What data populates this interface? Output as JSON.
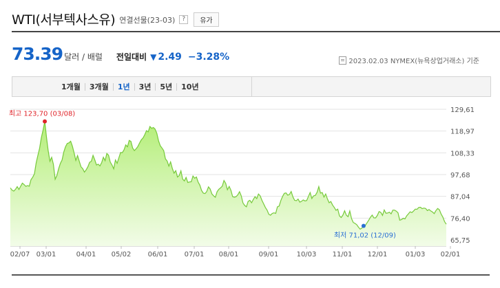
{
  "header": {
    "title": "WTI(서부텍사스유)",
    "subtitle": "연결선물(23-03)",
    "help_label": "?",
    "oil_button_label": "유가"
  },
  "price": {
    "value": "73.39",
    "unit": "달러 / 배럴",
    "compare_label": "전일대비",
    "arrow": "▼",
    "change": "2.49",
    "change_pct": "−3.28%",
    "asof": "2023.02.03  NYMEX(뉴욕상업거래소) 기준"
  },
  "periods": {
    "items": [
      "1개월",
      "3개월",
      "1년",
      "3년",
      "5년",
      "10년"
    ],
    "active": "1년"
  },
  "colors": {
    "accent": "#1664c8",
    "line": "#76c93a",
    "fill_top": "#b4ee78",
    "fill_bottom": "#f2fce8",
    "high": "#e0242a",
    "low": "#2a6fd4"
  },
  "chart_data": {
    "type": "area",
    "ylim": [
      65.75,
      129.61
    ],
    "y_ticks": [
      "129,61",
      "118,97",
      "108,33",
      "97,68",
      "87,04",
      "76,40",
      "65,75"
    ],
    "x_ticks": [
      "02/07",
      "03/01",
      "04/01",
      "05/02",
      "06/01",
      "07/01",
      "08/01",
      "09/01",
      "10/03",
      "11/01",
      "12/01",
      "01/03",
      "02/01"
    ],
    "high_label": "최고 123,70 (03/08)",
    "low_label": "최저 71,02 (12/09)",
    "high_index": 20,
    "low_index": 205,
    "values": [
      91.2,
      90.1,
      89.6,
      90.5,
      91.8,
      90.4,
      92.0,
      93.5,
      92.8,
      91.9,
      92.3,
      92.0,
      95.2,
      96.4,
      98.1,
      103.4,
      107.1,
      110.6,
      115.7,
      119.4,
      123.7,
      116.0,
      109.3,
      104.2,
      106.1,
      102.8,
      95.4,
      97.2,
      100.5,
      103.1,
      104.8,
      108.7,
      111.3,
      112.9,
      113.2,
      114.0,
      111.6,
      108.3,
      104.6,
      107.0,
      104.2,
      101.5,
      100.6,
      98.9,
      100.0,
      101.5,
      103.7,
      104.2,
      107.1,
      104.9,
      102.4,
      102.8,
      101.9,
      103.5,
      106.2,
      104.5,
      108.0,
      107.2,
      103.8,
      102.4,
      100.5,
      104.8,
      103.2,
      105.9,
      108.5,
      108.4,
      109.8,
      112.2,
      111.3,
      114.4,
      113.9,
      110.7,
      109.4,
      110.3,
      111.4,
      113.1,
      114.7,
      115.6,
      117.2,
      119.2,
      118.6,
      121.2,
      120.3,
      120.7,
      119.9,
      117.9,
      114.2,
      111.8,
      110.7,
      109.4,
      105.4,
      104.3,
      101.8,
      103.9,
      100.7,
      98.4,
      99.6,
      96.5,
      97.2,
      99.5,
      95.5,
      94.6,
      96.3,
      93.8,
      94.1,
      94.2,
      97.0,
      95.9,
      96.5,
      94.0,
      92.5,
      89.9,
      88.6,
      88.4,
      89.4,
      91.7,
      90.6,
      88.2,
      87.3,
      86.6,
      89.3,
      90.5,
      91.2,
      92.0,
      94.8,
      93.4,
      90.3,
      91.9,
      90.0,
      86.9,
      86.6,
      86.9,
      87.8,
      89.3,
      87.3,
      83.8,
      82.6,
      81.9,
      84.6,
      85.1,
      83.9,
      85.5,
      86.9,
      85.9,
      88.2,
      87.3,
      85.1,
      83.4,
      81.6,
      80.3,
      78.3,
      77.8,
      78.7,
      79.0,
      78.7,
      81.9,
      82.3,
      85.0,
      87.0,
      88.5,
      88.7,
      87.6,
      88.0,
      89.4,
      86.8,
      85.1,
      84.9,
      85.7,
      84.2,
      84.6,
      85.3,
      84.8,
      85.0,
      87.0,
      88.9,
      86.0,
      87.3,
      87.5,
      89.0,
      91.8,
      88.6,
      88.9,
      86.7,
      88.2,
      85.8,
      83.9,
      84.5,
      82.8,
      81.6,
      80.2,
      80.8,
      77.5,
      76.7,
      77.9,
      80.0,
      77.8,
      77.1,
      79.9,
      76.2,
      74.3,
      73.8,
      73.2,
      72.0,
      71.0,
      71.5,
      72.6,
      72.8,
      74.1,
      75.4,
      76.8,
      77.9,
      76.5,
      76.5,
      77.7,
      79.6,
      79.2,
      77.7,
      80.4,
      78.8,
      78.9,
      79.3,
      78.5,
      80.3,
      80.3,
      79.8,
      79.0,
      75.4,
      75.7,
      76.3,
      76.0,
      77.5,
      78.5,
      79.5,
      79.1,
      79.9,
      80.8,
      80.7,
      81.6,
      81.7,
      81.0,
      81.3,
      81.1,
      80.1,
      80.6,
      79.9,
      79.4,
      78.6,
      80.1,
      81.1,
      80.5,
      78.4,
      76.9,
      74.7,
      73.4
    ]
  }
}
